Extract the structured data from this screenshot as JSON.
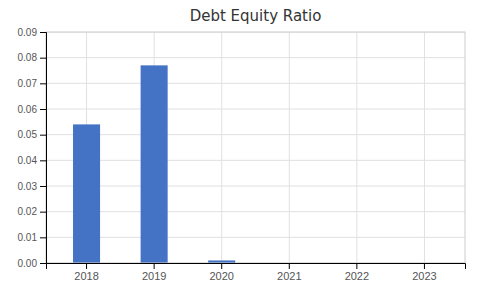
{
  "chart_data": {
    "type": "bar",
    "title": "Debt Equity Ratio",
    "categories": [
      "2018",
      "2019",
      "2020",
      "2021",
      "2022",
      "2023"
    ],
    "values": [
      0.054,
      0.077,
      0.001,
      0.0,
      0.0,
      0.0
    ],
    "color": "#4472C4",
    "ylim": [
      0,
      0.09
    ],
    "yticks": [
      {
        "value": 0.0,
        "label": "0.00"
      },
      0.01,
      0.02,
      0.03,
      0.04,
      0.05,
      0.06,
      0.07,
      0.08,
      0.09
    ],
    "grid": true
  }
}
